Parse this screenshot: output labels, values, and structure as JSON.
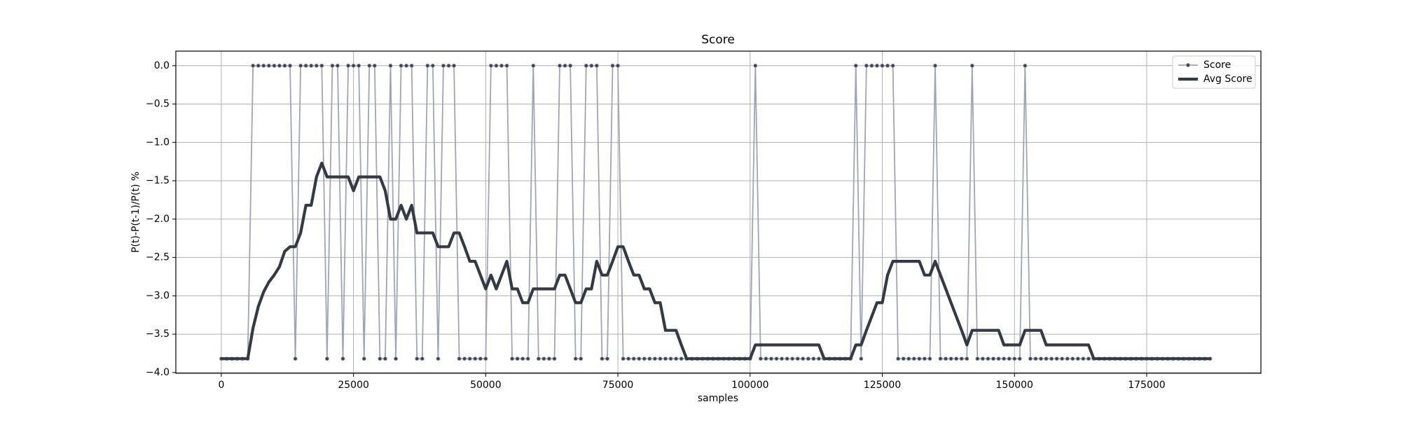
{
  "chart_data": {
    "type": "line",
    "title": "Score",
    "x_label": "samples",
    "y_label": "P(t)-P(t-1)/P(t) %",
    "xlim": [
      -8600,
      196600
    ],
    "ylim": [
      -4.01,
      0.19
    ],
    "xticks": [
      0,
      25000,
      50000,
      75000,
      100000,
      125000,
      150000,
      175000
    ],
    "yticks": [
      {
        "value": 0,
        "label": "0.0"
      },
      {
        "value": -0.5,
        "label": "−0.5"
      },
      {
        "value": -1,
        "label": "−1.0"
      },
      {
        "value": -1.5,
        "label": "−1.5"
      },
      {
        "value": -2,
        "label": "−2.0"
      },
      {
        "value": -2.5,
        "label": "−2.5"
      },
      {
        "value": -3,
        "label": "−3.0"
      },
      {
        "value": -3.5,
        "label": "−3.5"
      },
      {
        "value": -4,
        "label": "−4.0"
      }
    ],
    "grid": true,
    "legend": "upper right",
    "x": [
      0,
      1000,
      2000,
      3000,
      4000,
      5000,
      6000,
      7000,
      8000,
      9000,
      10000,
      11000,
      12000,
      13000,
      14000,
      15000,
      16000,
      17000,
      18000,
      19000,
      20000,
      21000,
      22000,
      23000,
      24000,
      25000,
      26000,
      27000,
      28000,
      29000,
      30000,
      31000,
      32000,
      33000,
      34000,
      35000,
      36000,
      37000,
      38000,
      39000,
      40000,
      41000,
      42000,
      43000,
      44000,
      45000,
      46000,
      47000,
      48000,
      49000,
      50000,
      51000,
      52000,
      53000,
      54000,
      55000,
      56000,
      57000,
      58000,
      59000,
      60000,
      61000,
      62000,
      63000,
      64000,
      65000,
      66000,
      67000,
      68000,
      69000,
      70000,
      71000,
      72000,
      73000,
      74000,
      75000,
      76000,
      77000,
      78000,
      79000,
      80000,
      81000,
      82000,
      83000,
      84000,
      85000,
      86000,
      87000,
      88000,
      89000,
      90000,
      91000,
      92000,
      93000,
      94000,
      95000,
      96000,
      97000,
      98000,
      99000,
      100000,
      101000,
      102000,
      103000,
      104000,
      105000,
      106000,
      107000,
      108000,
      109000,
      110000,
      111000,
      112000,
      113000,
      114000,
      115000,
      116000,
      117000,
      118000,
      119000,
      120000,
      121000,
      122000,
      123000,
      124000,
      125000,
      126000,
      127000,
      128000,
      129000,
      130000,
      131000,
      132000,
      133000,
      134000,
      135000,
      136000,
      137000,
      138000,
      139000,
      140000,
      141000,
      142000,
      143000,
      144000,
      145000,
      146000,
      147000,
      148000,
      149000,
      150000,
      151000,
      152000,
      153000,
      154000,
      155000,
      156000,
      157000,
      158000,
      159000,
      160000,
      161000,
      162000,
      163000,
      164000,
      165000,
      166000,
      167000,
      168000,
      169000,
      170000,
      171000,
      172000,
      173000,
      174000,
      175000,
      176000,
      177000,
      178000,
      179000,
      180000,
      181000,
      182000,
      183000,
      184000,
      185000,
      186000,
      187000
    ],
    "series": [
      {
        "name": "Score",
        "color": "#a0a4b8",
        "marker_color": "#3b4252",
        "values": [
          -3.82,
          -3.82,
          -3.82,
          -3.82,
          -3.82,
          -3.82,
          0,
          0,
          0,
          0,
          0,
          0,
          0,
          0,
          -3.82,
          0,
          0,
          0,
          0,
          0,
          -3.82,
          0,
          0,
          -3.82,
          0,
          0,
          0,
          -3.82,
          0,
          0,
          -3.82,
          -3.82,
          0,
          -3.82,
          0,
          0,
          0,
          -3.82,
          -3.82,
          0,
          0,
          -3.82,
          0,
          0,
          0,
          -3.82,
          -3.82,
          -3.82,
          -3.82,
          -3.82,
          -3.82,
          0,
          0,
          0,
          0,
          -3.82,
          -3.82,
          -3.82,
          -3.82,
          0,
          -3.82,
          -3.82,
          -3.82,
          -3.82,
          0,
          0,
          0,
          -3.82,
          -3.82,
          0,
          0,
          0,
          -3.82,
          -3.82,
          0,
          0,
          -3.82,
          -3.82,
          -3.82,
          -3.82,
          -3.82,
          -3.82,
          -3.82,
          -3.82,
          -3.82,
          -3.82,
          -3.82,
          -3.82,
          -3.82,
          -3.82,
          -3.82,
          -3.82,
          -3.82,
          -3.82,
          -3.82,
          -3.82,
          -3.82,
          -3.82,
          -3.82,
          -3.82,
          -3.82,
          0,
          -3.82,
          -3.82,
          -3.82,
          -3.82,
          -3.82,
          -3.82,
          -3.82,
          -3.82,
          -3.82,
          -3.82,
          -3.82,
          -3.82,
          -3.82,
          -3.82,
          -3.82,
          -3.82,
          -3.82,
          -3.82,
          0,
          -3.82,
          0,
          0,
          0,
          0,
          0,
          0,
          -3.82,
          -3.82,
          -3.82,
          -3.82,
          -3.82,
          -3.82,
          -3.82,
          0,
          -3.82,
          -3.82,
          -3.82,
          -3.82,
          -3.82,
          -3.82,
          0,
          -3.82,
          -3.82,
          -3.82,
          -3.82,
          -3.82,
          -3.82,
          -3.82,
          -3.82,
          -3.82,
          0,
          -3.82,
          -3.82,
          -3.82,
          -3.82,
          -3.82,
          -3.82,
          -3.82,
          -3.82,
          -3.82,
          -3.82,
          -3.82,
          -3.82,
          -3.82,
          -3.82,
          -3.82,
          -3.82,
          -3.82,
          -3.82,
          -3.82,
          -3.82,
          -3.82,
          -3.82,
          -3.82,
          -3.82,
          -3.82,
          -3.82,
          -3.82,
          -3.82,
          -3.82,
          -3.82,
          -3.82,
          -3.82,
          -3.82,
          -3.82,
          -3.82
        ]
      },
      {
        "name": "Avg Score",
        "color": "#343a45",
        "values": [
          -3.82,
          -3.82,
          -3.82,
          -3.82,
          -3.82,
          -3.82,
          -3.42,
          -3.14,
          -2.95,
          -2.82,
          -2.73,
          -2.62,
          -2.42,
          -2.36,
          -2.36,
          -2.18,
          -1.82,
          -1.82,
          -1.45,
          -1.27,
          -1.45,
          -1.45,
          -1.45,
          -1.45,
          -1.45,
          -1.63,
          -1.45,
          -1.45,
          -1.45,
          -1.45,
          -1.45,
          -1.63,
          -2.0,
          -2.0,
          -1.82,
          -2.0,
          -1.82,
          -2.18,
          -2.18,
          -2.18,
          -2.18,
          -2.36,
          -2.36,
          -2.36,
          -2.18,
          -2.18,
          -2.36,
          -2.55,
          -2.55,
          -2.73,
          -2.91,
          -2.73,
          -2.91,
          -2.73,
          -2.55,
          -2.91,
          -2.91,
          -3.09,
          -3.09,
          -2.91,
          -2.91,
          -2.91,
          -2.91,
          -2.91,
          -2.73,
          -2.73,
          -2.91,
          -3.09,
          -3.09,
          -2.91,
          -2.91,
          -2.55,
          -2.73,
          -2.73,
          -2.55,
          -2.36,
          -2.36,
          -2.55,
          -2.73,
          -2.73,
          -2.91,
          -2.91,
          -3.09,
          -3.09,
          -3.45,
          -3.45,
          -3.45,
          -3.64,
          -3.82,
          -3.82,
          -3.82,
          -3.82,
          -3.82,
          -3.82,
          -3.82,
          -3.82,
          -3.82,
          -3.82,
          -3.82,
          -3.82,
          -3.82,
          -3.64,
          -3.64,
          -3.64,
          -3.64,
          -3.64,
          -3.64,
          -3.64,
          -3.64,
          -3.64,
          -3.64,
          -3.64,
          -3.64,
          -3.64,
          -3.82,
          -3.82,
          -3.82,
          -3.82,
          -3.82,
          -3.82,
          -3.64,
          -3.64,
          -3.45,
          -3.27,
          -3.09,
          -3.09,
          -2.73,
          -2.55,
          -2.55,
          -2.55,
          -2.55,
          -2.55,
          -2.55,
          -2.73,
          -2.73,
          -2.55,
          -2.73,
          -2.91,
          -3.09,
          -3.27,
          -3.45,
          -3.64,
          -3.45,
          -3.45,
          -3.45,
          -3.45,
          -3.45,
          -3.45,
          -3.64,
          -3.64,
          -3.64,
          -3.64,
          -3.45,
          -3.45,
          -3.45,
          -3.45,
          -3.64,
          -3.64,
          -3.64,
          -3.64,
          -3.64,
          -3.64,
          -3.64,
          -3.64,
          -3.64,
          -3.82,
          -3.82,
          -3.82,
          -3.82,
          -3.82,
          -3.82,
          -3.82,
          -3.82,
          -3.82,
          -3.82,
          -3.82,
          -3.82,
          -3.82,
          -3.82,
          -3.82,
          -3.82,
          -3.82,
          -3.82,
          -3.82,
          -3.82,
          -3.82,
          -3.82,
          -3.82
        ]
      }
    ]
  }
}
